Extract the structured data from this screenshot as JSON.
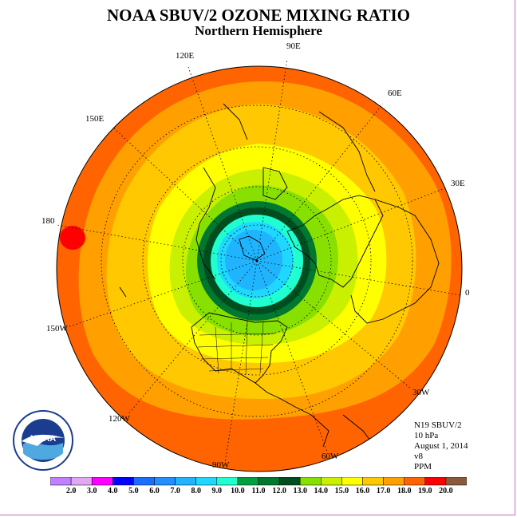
{
  "title": "NOAA SBUV/2 OZONE MIXING RATIO",
  "subtitle": "Northern Hemisphere",
  "longitude_labels": [
    "120E",
    "90E",
    "60E",
    "150E",
    "30E",
    "180",
    "0",
    "150W",
    "30W",
    "120W",
    "60W",
    "90W"
  ],
  "info": {
    "satellite": "N19 SBUV/2",
    "level": "10 hPa",
    "date": "August 1, 2014",
    "version": "v8",
    "units": "PPM"
  },
  "logo": {
    "text": "NOAA",
    "ring_text": "NATIONAL OCEANIC AND ATMOSPHERIC ADMINISTRATION · U.S. DEPARTMENT OF COMMERCE"
  },
  "colorbar": {
    "labels": [
      "2.0",
      "3.0",
      "4.0",
      "5.0",
      "6.0",
      "7.0",
      "8.0",
      "9.0",
      "10.0",
      "11.0",
      "12.0",
      "13.0",
      "14.0",
      "15.0",
      "16.0",
      "17.0",
      "18.0",
      "19.0",
      "20.0"
    ],
    "colors": [
      "#c080ff",
      "#e0a8f0",
      "#ff00ff",
      "#0000ff",
      "#1c6cff",
      "#2090ff",
      "#20b4ff",
      "#20d8ff",
      "#20ffd0",
      "#00a040",
      "#007830",
      "#004e20",
      "#88e000",
      "#c8f000",
      "#ffff00",
      "#ffc800",
      "#ffa000",
      "#ff6400",
      "#ff0000",
      "#8b5a3c"
    ]
  },
  "map_colors": {
    "outer": "#ff6400",
    "orange": "#ffa000",
    "light_orange": "#ffc800",
    "yellow": "#ffff00",
    "yellow_green": "#c8f000",
    "green": "#88e000",
    "dark_green1": "#007830",
    "dark_green2": "#004e20",
    "cyan": "#20ffd0",
    "light_blue": "#20d8ff",
    "blue": "#20b4ff",
    "hotspot": "#ff0000"
  }
}
